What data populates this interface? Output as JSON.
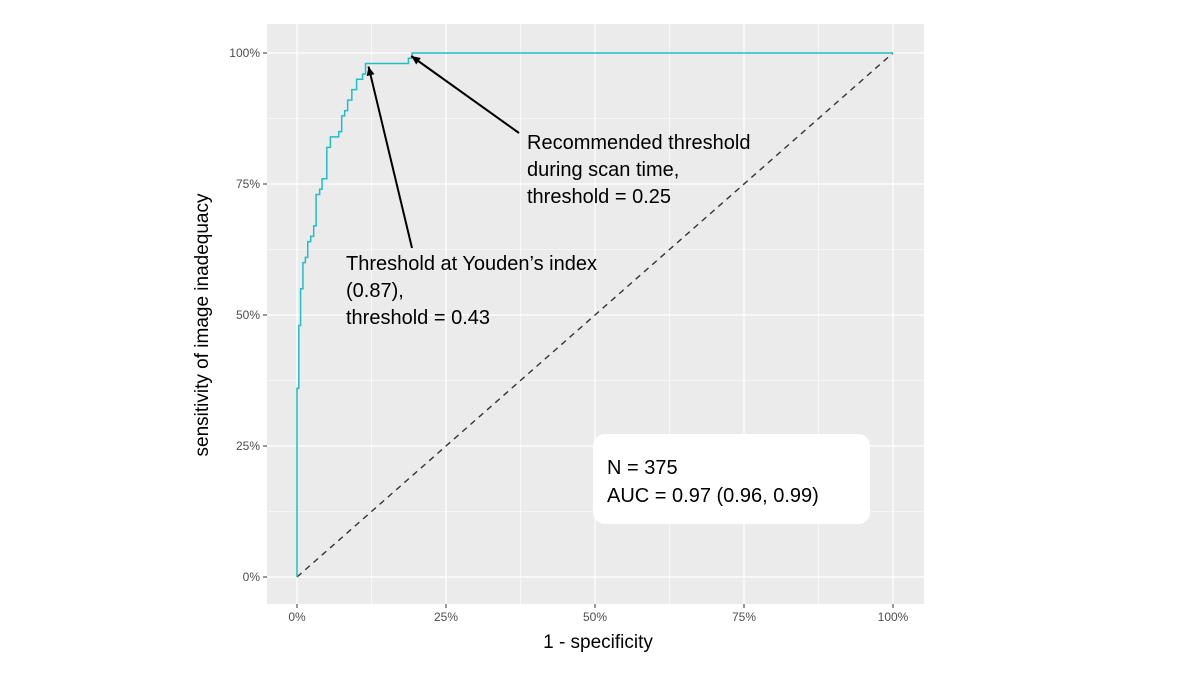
{
  "chart_data": {
    "type": "line",
    "xlabel": "1 - specificity",
    "ylabel": "sensitivity of image inadequacy",
    "xlim": [
      0,
      1
    ],
    "ylim": [
      0,
      1
    ],
    "x_ticks": [
      "0%",
      "25%",
      "50%",
      "75%",
      "100%"
    ],
    "y_ticks": [
      "0%",
      "25%",
      "50%",
      "75%",
      "100%"
    ],
    "grid": true,
    "series": [
      {
        "color": "#1fbfc4",
        "step": true,
        "points": [
          [
            0.0,
            0.0
          ],
          [
            0.0,
            0.36
          ],
          [
            0.003,
            0.36
          ],
          [
            0.003,
            0.48
          ],
          [
            0.006,
            0.48
          ],
          [
            0.006,
            0.55
          ],
          [
            0.01,
            0.55
          ],
          [
            0.01,
            0.6
          ],
          [
            0.014,
            0.6
          ],
          [
            0.014,
            0.61
          ],
          [
            0.018,
            0.61
          ],
          [
            0.018,
            0.64
          ],
          [
            0.023,
            0.64
          ],
          [
            0.023,
            0.65
          ],
          [
            0.028,
            0.65
          ],
          [
            0.028,
            0.67
          ],
          [
            0.032,
            0.67
          ],
          [
            0.032,
            0.73
          ],
          [
            0.038,
            0.73
          ],
          [
            0.038,
            0.74
          ],
          [
            0.042,
            0.74
          ],
          [
            0.042,
            0.76
          ],
          [
            0.05,
            0.76
          ],
          [
            0.05,
            0.82
          ],
          [
            0.056,
            0.82
          ],
          [
            0.056,
            0.84
          ],
          [
            0.07,
            0.84
          ],
          [
            0.07,
            0.85
          ],
          [
            0.075,
            0.85
          ],
          [
            0.075,
            0.88
          ],
          [
            0.08,
            0.88
          ],
          [
            0.08,
            0.89
          ],
          [
            0.085,
            0.89
          ],
          [
            0.085,
            0.91
          ],
          [
            0.092,
            0.91
          ],
          [
            0.092,
            0.93
          ],
          [
            0.1,
            0.93
          ],
          [
            0.1,
            0.95
          ],
          [
            0.11,
            0.95
          ],
          [
            0.11,
            0.96
          ],
          [
            0.115,
            0.96
          ],
          [
            0.115,
            0.98
          ],
          [
            0.187,
            0.98
          ],
          [
            0.187,
            0.99
          ],
          [
            0.193,
            0.99
          ],
          [
            0.193,
            1.0
          ],
          [
            1.0,
            1.0
          ]
        ]
      },
      {
        "style": "dashed",
        "color": "#333333",
        "points": [
          [
            0,
            0
          ],
          [
            1,
            1
          ]
        ]
      }
    ],
    "annotations": [
      {
        "lines": [
          "Recommended threshold",
          "during scan time,",
          "threshold = 0.25"
        ],
        "arrow_to": [
          0.19,
          1.0
        ]
      },
      {
        "lines": [
          "Threshold at Youden’s index",
          "(0.87),",
          "threshold = 0.43"
        ],
        "arrow_to": [
          0.12,
          0.98
        ]
      }
    ],
    "info_box": {
      "lines": [
        "N = 375",
        "AUC = 0.97 (0.96, 0.99)"
      ]
    }
  }
}
